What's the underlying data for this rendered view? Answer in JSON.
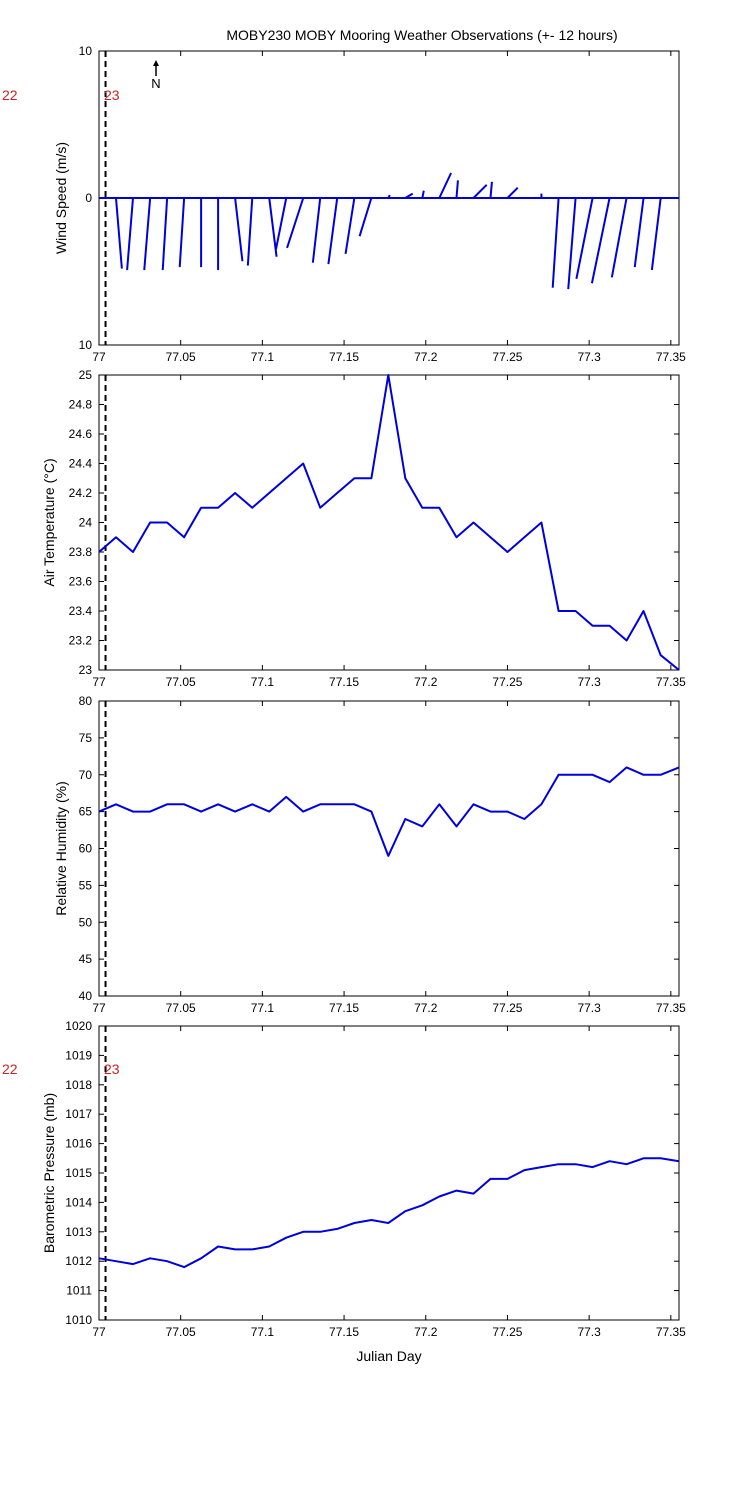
{
  "title": "MOBY230 MOBY Mooring Weather Observations (+- 12 hours)",
  "colors": {
    "line": "#0000dd",
    "marker": "#cc2222",
    "axis": "#000000"
  },
  "markers": {
    "left": "22",
    "right": "23",
    "x": 77.004
  },
  "chart_data": [
    {
      "type": "wind_vector",
      "ylabel": "Wind Speed (m/s)",
      "xlim": [
        77,
        77.355
      ],
      "ylim": [
        -10,
        10
      ],
      "yticks": [
        -10,
        0,
        10
      ],
      "ytick_labels": [
        "10",
        "0",
        "10"
      ],
      "xticks": [
        77,
        77.05,
        77.1,
        77.15,
        77.2,
        77.25,
        77.3,
        77.35
      ],
      "xtick_labels": [
        "77",
        "77.05",
        "77.1",
        "77.15",
        "77.2",
        "77.25",
        "77.3",
        "77.35"
      ],
      "north_label": "N",
      "vectors": [
        {
          "x": 77.0104,
          "u": 0.4,
          "v": -4.8
        },
        {
          "x": 77.0208,
          "u": -0.4,
          "v": -4.9
        },
        {
          "x": 77.0313,
          "u": -0.4,
          "v": -4.9
        },
        {
          "x": 77.0417,
          "u": -0.3,
          "v": -4.9
        },
        {
          "x": 77.0521,
          "u": -0.3,
          "v": -4.7
        },
        {
          "x": 77.0625,
          "u": 0.0,
          "v": -4.7
        },
        {
          "x": 77.0729,
          "u": 0.0,
          "v": -4.9
        },
        {
          "x": 77.0833,
          "u": 0.5,
          "v": -4.3
        },
        {
          "x": 77.0938,
          "u": -0.3,
          "v": -4.6
        },
        {
          "x": 77.1042,
          "u": 0.5,
          "v": -4.0
        },
        {
          "x": 77.1146,
          "u": -0.7,
          "v": -3.5
        },
        {
          "x": 77.125,
          "u": -1.1,
          "v": -3.4
        },
        {
          "x": 77.1354,
          "u": -0.5,
          "v": -4.4
        },
        {
          "x": 77.1458,
          "u": -0.6,
          "v": -4.5
        },
        {
          "x": 77.1563,
          "u": -0.6,
          "v": -3.8
        },
        {
          "x": 77.1667,
          "u": -0.8,
          "v": -2.6
        },
        {
          "x": 77.1771,
          "u": 0.1,
          "v": 0.2
        },
        {
          "x": 77.1875,
          "u": 0.5,
          "v": 0.3
        },
        {
          "x": 77.1979,
          "u": 0.1,
          "v": 0.5
        },
        {
          "x": 77.2083,
          "u": 0.8,
          "v": 1.7
        },
        {
          "x": 77.2188,
          "u": 0.1,
          "v": 1.2
        },
        {
          "x": 77.2292,
          "u": 0.9,
          "v": 0.9
        },
        {
          "x": 77.2396,
          "u": 0.1,
          "v": 1.1
        },
        {
          "x": 77.25,
          "u": 0.7,
          "v": 0.7
        },
        {
          "x": 77.2708,
          "u": 0.0,
          "v": 0.3
        },
        {
          "x": 77.2813,
          "u": -0.4,
          "v": -6.1
        },
        {
          "x": 77.2917,
          "u": -0.5,
          "v": -6.2
        },
        {
          "x": 77.3021,
          "u": -1.1,
          "v": -5.5
        },
        {
          "x": 77.3125,
          "u": -1.2,
          "v": -5.8
        },
        {
          "x": 77.3229,
          "u": -1.0,
          "v": -5.4
        },
        {
          "x": 77.3333,
          "u": -0.6,
          "v": -4.7
        },
        {
          "x": 77.3438,
          "u": -0.6,
          "v": -4.9
        }
      ]
    },
    {
      "type": "line",
      "ylabel": "Air Temperature (°C)",
      "xlim": [
        77,
        77.355
      ],
      "ylim": [
        23,
        25
      ],
      "yticks": [
        23,
        23.2,
        23.4,
        23.6,
        23.8,
        24,
        24.2,
        24.4,
        24.6,
        24.8,
        25
      ],
      "ytick_labels": [
        "23",
        "23.2",
        "23.4",
        "23.6",
        "23.8",
        "24",
        "24.2",
        "24.4",
        "24.6",
        "24.8",
        "25"
      ],
      "xticks": [
        77,
        77.05,
        77.1,
        77.15,
        77.2,
        77.25,
        77.3,
        77.35
      ],
      "xtick_labels": [
        "77",
        "77.05",
        "77.1",
        "77.15",
        "77.2",
        "77.25",
        "77.3",
        "77.35"
      ],
      "x": [
        77.0,
        77.0104,
        77.0208,
        77.0313,
        77.0417,
        77.0521,
        77.0625,
        77.0729,
        77.0833,
        77.0938,
        77.1042,
        77.1146,
        77.125,
        77.1354,
        77.1458,
        77.1563,
        77.1667,
        77.1771,
        77.1875,
        77.1979,
        77.2083,
        77.2188,
        77.2292,
        77.2396,
        77.25,
        77.2604,
        77.2708,
        77.2813,
        77.2917,
        77.3021,
        77.3125,
        77.3229,
        77.3333,
        77.3438,
        77.355
      ],
      "y": [
        23.8,
        23.9,
        23.8,
        24.0,
        24.0,
        23.9,
        24.1,
        24.1,
        24.2,
        24.1,
        24.2,
        24.3,
        24.4,
        24.1,
        24.2,
        24.3,
        24.3,
        25.0,
        24.3,
        24.1,
        24.1,
        23.9,
        24.0,
        23.9,
        23.8,
        23.9,
        24.0,
        23.4,
        23.4,
        23.3,
        23.3,
        23.2,
        23.4,
        23.1,
        23.0
      ]
    },
    {
      "type": "line",
      "ylabel": "Relative Humidity (%)",
      "xlim": [
        77,
        77.355
      ],
      "ylim": [
        40,
        80
      ],
      "yticks": [
        40,
        45,
        50,
        55,
        60,
        65,
        70,
        75,
        80
      ],
      "ytick_labels": [
        "40",
        "45",
        "50",
        "55",
        "60",
        "65",
        "70",
        "75",
        "80"
      ],
      "xticks": [
        77,
        77.05,
        77.1,
        77.15,
        77.2,
        77.25,
        77.3,
        77.35
      ],
      "xtick_labels": [
        "77",
        "77.05",
        "77.1",
        "77.15",
        "77.2",
        "77.25",
        "77.3",
        "77.35"
      ],
      "x": [
        77.0,
        77.0104,
        77.0208,
        77.0313,
        77.0417,
        77.0521,
        77.0625,
        77.0729,
        77.0833,
        77.0938,
        77.1042,
        77.1146,
        77.125,
        77.1354,
        77.1458,
        77.1563,
        77.1667,
        77.1771,
        77.1875,
        77.1979,
        77.2083,
        77.2188,
        77.2292,
        77.2396,
        77.25,
        77.2604,
        77.2708,
        77.2813,
        77.2917,
        77.3021,
        77.3125,
        77.3229,
        77.3333,
        77.3438,
        77.355
      ],
      "y": [
        65,
        66,
        65,
        65,
        66,
        66,
        65,
        66,
        65,
        66,
        65,
        67,
        65,
        66,
        66,
        66,
        65,
        59,
        64,
        63,
        66,
        63,
        66,
        65,
        65,
        64,
        66,
        70,
        70,
        70,
        69,
        71,
        70,
        70,
        71
      ]
    },
    {
      "type": "line",
      "ylabel": "Barometric Pressure (mb)",
      "xlabel": "Julian Day",
      "xlim": [
        77,
        77.355
      ],
      "ylim": [
        1010,
        1020
      ],
      "yticks": [
        1010,
        1011,
        1012,
        1013,
        1014,
        1015,
        1016,
        1017,
        1018,
        1019,
        1020
      ],
      "ytick_labels": [
        "1010",
        "1011",
        "1012",
        "1013",
        "1014",
        "1015",
        "1016",
        "1017",
        "1018",
        "1019",
        "1020"
      ],
      "xticks": [
        77,
        77.05,
        77.1,
        77.15,
        77.2,
        77.25,
        77.3,
        77.35
      ],
      "xtick_labels": [
        "77",
        "77.05",
        "77.1",
        "77.15",
        "77.2",
        "77.25",
        "77.3",
        "77.35"
      ],
      "x": [
        77.0,
        77.0104,
        77.0208,
        77.0313,
        77.0417,
        77.0521,
        77.0625,
        77.0729,
        77.0833,
        77.0938,
        77.1042,
        77.1146,
        77.125,
        77.1354,
        77.1458,
        77.1563,
        77.1667,
        77.1771,
        77.1875,
        77.1979,
        77.2083,
        77.2188,
        77.2292,
        77.2396,
        77.25,
        77.2604,
        77.2708,
        77.2813,
        77.2917,
        77.3021,
        77.3125,
        77.3229,
        77.3333,
        77.3438,
        77.355
      ],
      "y": [
        1012.1,
        1012.0,
        1011.9,
        1012.1,
        1012.0,
        1011.8,
        1012.1,
        1012.5,
        1012.4,
        1012.4,
        1012.5,
        1012.8,
        1013.0,
        1013.0,
        1013.1,
        1013.3,
        1013.4,
        1013.3,
        1013.7,
        1013.9,
        1014.2,
        1014.4,
        1014.3,
        1014.8,
        1014.8,
        1015.1,
        1015.2,
        1015.3,
        1015.3,
        1015.2,
        1015.4,
        1015.3,
        1015.5,
        1015.5,
        1015.4
      ]
    }
  ]
}
